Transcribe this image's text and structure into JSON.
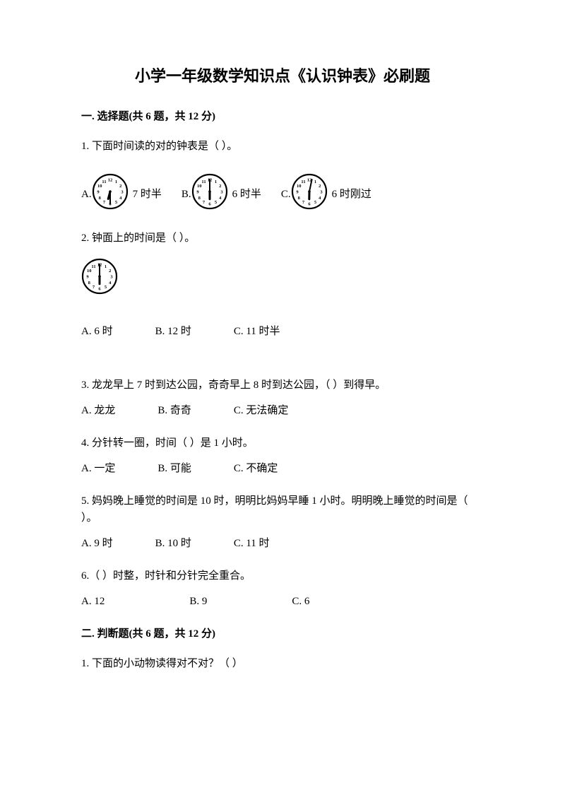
{
  "title": "小学一年级数学知识点《认识钟表》必刷题",
  "section1": {
    "header": "一. 选择题(共 6 题，共 12 分)",
    "q1": {
      "text": "1. 下面时间读的对的钟表是（    ）。",
      "optA_label": "A.",
      "optA_text": "7 时半",
      "optB_label": "B.",
      "optB_text": "6 时半",
      "optC_label": "C.",
      "optC_text": "6 时刚过",
      "clockA": {
        "hour": 6,
        "minute": 30
      },
      "clockB": {
        "hour": 6,
        "minute": 0
      },
      "clockC": {
        "hour": 6,
        "minute": 2
      }
    },
    "q2": {
      "text": "2. 钟面上的时间是（    ）。",
      "clock": {
        "hour": 6,
        "minute": 0
      },
      "optA": "A. 6 时",
      "optB": "B. 12 时",
      "optC": "C. 11 时半"
    },
    "q3": {
      "text": "3. 龙龙早上 7 时到达公园，奇奇早上 8 时到达公园，（    ）到得早。",
      "optA": "A. 龙龙",
      "optB": "B. 奇奇",
      "optC": "C. 无法确定"
    },
    "q4": {
      "text": "4. 分针转一圈，时间（    ）是 1 小时。",
      "optA": "A. 一定",
      "optB": "B. 可能",
      "optC": "C. 不确定"
    },
    "q5": {
      "text": "5. 妈妈晚上睡觉的时间是 10 时，明明比妈妈早睡 1 小时。明明晚上睡觉的时间是（    ）。",
      "optA": "A. 9 时",
      "optB": "B. 10 时",
      "optC": "C. 11 时"
    },
    "q6": {
      "text": "6.（    ）时整，时针和分针完全重合。",
      "optA": "A. 12",
      "optB": "B. 9",
      "optC": "C. 6"
    }
  },
  "section2": {
    "header": "二. 判断题(共 6 题，共 12 分)",
    "q1": {
      "text": "1. 下面的小动物读得对不对？（    ）"
    }
  },
  "clock_style": {
    "size": 52,
    "stroke": "#000000",
    "fill": "#ffffff",
    "stroke_width": 2
  }
}
